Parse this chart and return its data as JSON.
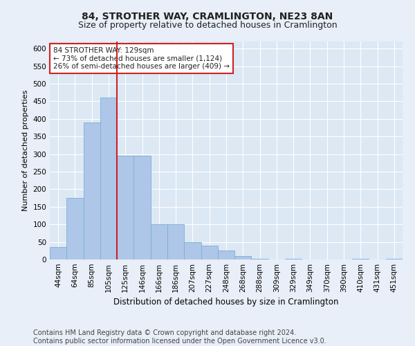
{
  "title": "84, STROTHER WAY, CRAMLINGTON, NE23 8AN",
  "subtitle": "Size of property relative to detached houses in Cramlington",
  "xlabel": "Distribution of detached houses by size in Cramlington",
  "ylabel": "Number of detached properties",
  "categories": [
    "44sqm",
    "64sqm",
    "85sqm",
    "105sqm",
    "125sqm",
    "146sqm",
    "166sqm",
    "186sqm",
    "207sqm",
    "227sqm",
    "248sqm",
    "268sqm",
    "288sqm",
    "309sqm",
    "329sqm",
    "349sqm",
    "370sqm",
    "390sqm",
    "410sqm",
    "431sqm",
    "451sqm"
  ],
  "values": [
    35,
    175,
    390,
    460,
    295,
    295,
    100,
    100,
    50,
    40,
    25,
    10,
    2,
    0,
    2,
    0,
    0,
    0,
    2,
    0,
    2
  ],
  "bar_color": "#aec6e8",
  "bar_edge_color": "#7aafd4",
  "vline_color": "#cc2222",
  "vline_x_index": 4,
  "annotation_text": "84 STROTHER WAY: 129sqm\n← 73% of detached houses are smaller (1,124)\n26% of semi-detached houses are larger (409) →",
  "annotation_box_facecolor": "#ffffff",
  "annotation_box_edgecolor": "#cc2222",
  "ylim": [
    0,
    620
  ],
  "yticks": [
    0,
    50,
    100,
    150,
    200,
    250,
    300,
    350,
    400,
    450,
    500,
    550,
    600
  ],
  "background_color": "#e8eff8",
  "plot_bg_color": "#dce8f4",
  "grid_color": "#ffffff",
  "footer": "Contains HM Land Registry data © Crown copyright and database right 2024.\nContains public sector information licensed under the Open Government Licence v3.0.",
  "title_fontsize": 10,
  "subtitle_fontsize": 9,
  "xlabel_fontsize": 8.5,
  "ylabel_fontsize": 8,
  "tick_fontsize": 7.5,
  "annotation_fontsize": 7.5,
  "footer_fontsize": 7
}
